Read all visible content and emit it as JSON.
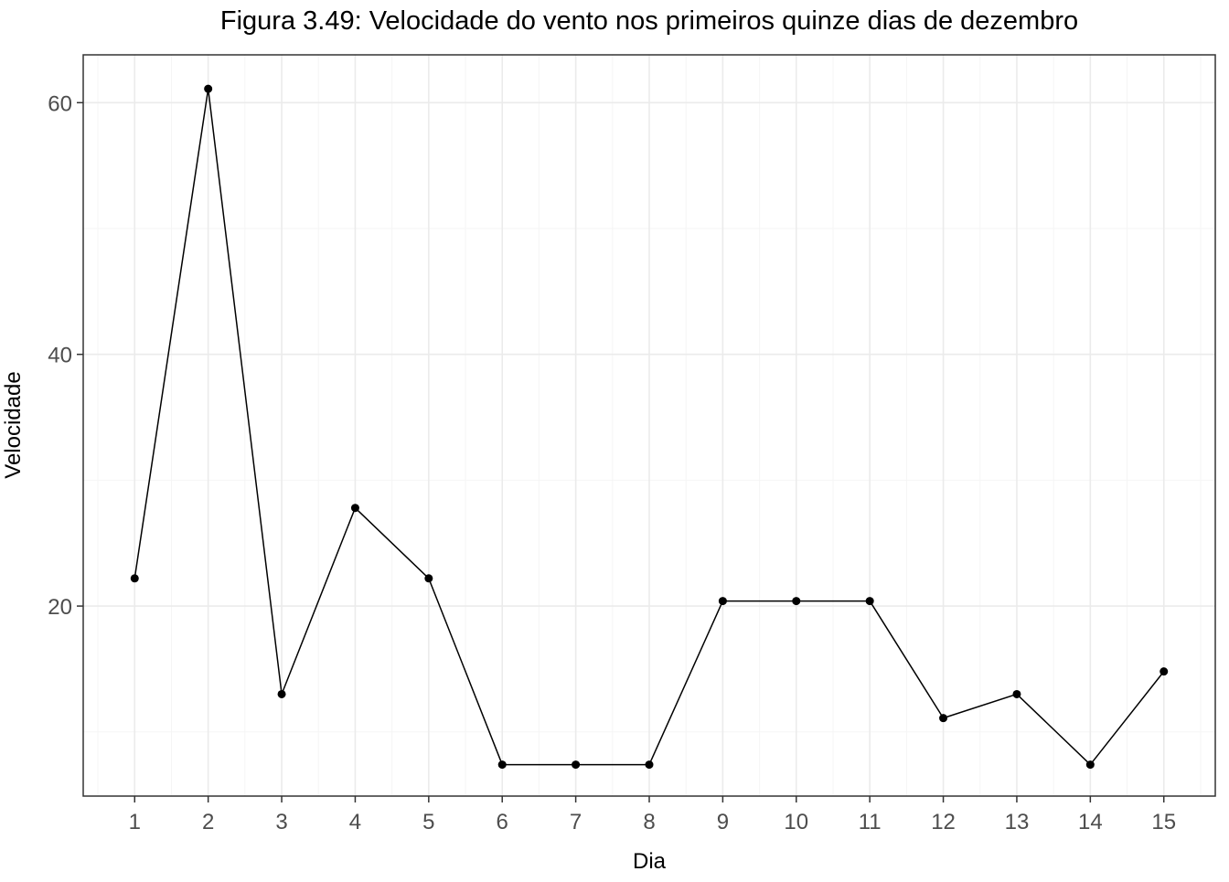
{
  "chart_data": {
    "type": "line",
    "title": "Figura 3.49: Velocidade do vento nos primeiros quinze dias de dezembro",
    "xlabel": "Dia",
    "ylabel": "Velocidade",
    "x": [
      1,
      2,
      3,
      4,
      5,
      6,
      7,
      8,
      9,
      10,
      11,
      12,
      13,
      14,
      15
    ],
    "series": [
      {
        "values": [
          22.2,
          61.1,
          13.0,
          27.8,
          22.2,
          7.4,
          7.4,
          7.4,
          20.4,
          20.4,
          20.4,
          11.1,
          13.0,
          7.4,
          14.8
        ]
      }
    ],
    "xlim": [
      0.3,
      15.7
    ],
    "ylim": [
      4.9,
      63.8
    ],
    "x_ticks": [
      1,
      2,
      3,
      4,
      5,
      6,
      7,
      8,
      9,
      10,
      11,
      12,
      13,
      14,
      15
    ],
    "y_ticks": [
      20,
      40,
      60
    ],
    "y_minor_ticks": [
      10,
      30,
      50
    ],
    "grid": true,
    "legend": "none",
    "colors": {
      "line": "#000000",
      "points": "#000000",
      "grid_major": "#ebebeb",
      "grid_minor": "#f5f5f5",
      "panel_border": "#333333",
      "tick_text": "#4d4d4d"
    }
  }
}
